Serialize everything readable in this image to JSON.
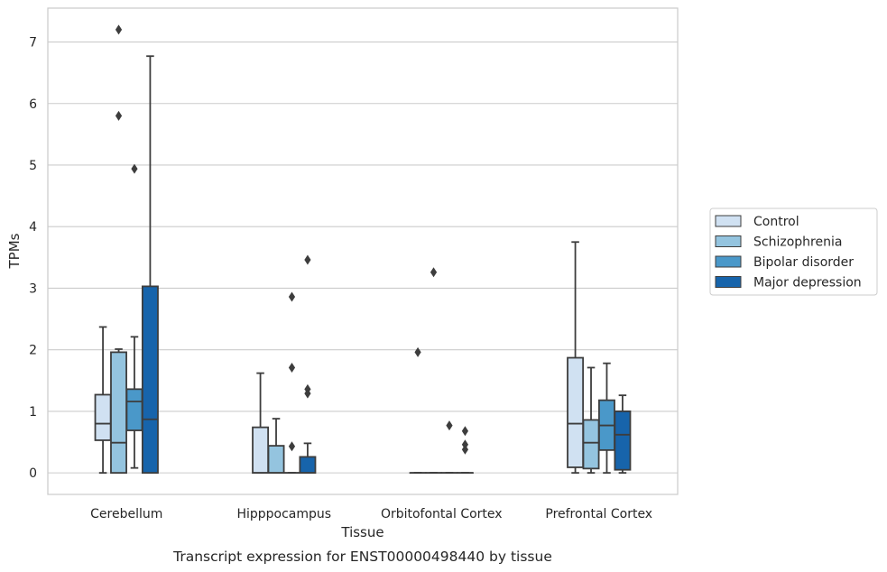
{
  "caption": "Transcript expression for ENST00000498440 by tissue",
  "chart_data": {
    "type": "box",
    "xlabel": "Tissue",
    "ylabel": "TPMs",
    "ylim": [
      -0.35,
      7.55
    ],
    "yticks": [
      0,
      1,
      2,
      3,
      4,
      5,
      6,
      7
    ],
    "grid": "horizontal",
    "legend_position": "right",
    "categories": [
      "Cerebellum",
      "Hipppocampus",
      "Orbitofontal Cortex",
      "Prefrontal Cortex"
    ],
    "series": [
      {
        "name": "Control",
        "color": "#d0e1f2",
        "boxes": [
          {
            "whislo": 0.0,
            "q1": 0.53,
            "med": 0.8,
            "q3": 1.27,
            "whishi": 2.37,
            "fliers": []
          },
          {
            "whislo": 0.0,
            "q1": 0.0,
            "med": 0.0,
            "q3": 0.74,
            "whishi": 1.62,
            "fliers": []
          },
          {
            "whislo": 0.0,
            "q1": 0.0,
            "med": 0.0,
            "q3": 0.0,
            "whishi": 0.0,
            "fliers": [
              1.96
            ]
          },
          {
            "whislo": 0.0,
            "q1": 0.09,
            "med": 0.8,
            "q3": 1.87,
            "whishi": 3.75,
            "fliers": []
          }
        ]
      },
      {
        "name": "Schizophrenia",
        "color": "#94c4df",
        "boxes": [
          {
            "whislo": 0.0,
            "q1": 0.0,
            "med": 0.49,
            "q3": 1.96,
            "whishi": 2.01,
            "fliers": [
              5.8,
              7.2
            ]
          },
          {
            "whislo": 0.0,
            "q1": 0.0,
            "med": 0.0,
            "q3": 0.44,
            "whishi": 0.88,
            "fliers": []
          },
          {
            "whislo": 0.0,
            "q1": 0.0,
            "med": 0.0,
            "q3": 0.0,
            "whishi": 0.0,
            "fliers": [
              3.26
            ]
          },
          {
            "whislo": 0.0,
            "q1": 0.07,
            "med": 0.49,
            "q3": 0.86,
            "whishi": 1.71,
            "fliers": []
          }
        ]
      },
      {
        "name": "Bipolar disorder",
        "color": "#4a98c9",
        "boxes": [
          {
            "whislo": 0.08,
            "q1": 0.69,
            "med": 1.16,
            "q3": 1.36,
            "whishi": 2.21,
            "fliers": [
              4.94
            ]
          },
          {
            "whislo": 0.0,
            "q1": 0.0,
            "med": 0.0,
            "q3": 0.0,
            "whishi": 0.0,
            "fliers": [
              0.43,
              1.71,
              2.86
            ]
          },
          {
            "whislo": 0.0,
            "q1": 0.0,
            "med": 0.0,
            "q3": 0.0,
            "whishi": 0.0,
            "fliers": [
              0.77
            ]
          },
          {
            "whislo": 0.0,
            "q1": 0.37,
            "med": 0.77,
            "q3": 1.18,
            "whishi": 1.78,
            "fliers": []
          }
        ]
      },
      {
        "name": "Major depression",
        "color": "#1764ab",
        "boxes": [
          {
            "whislo": 0.0,
            "q1": 0.0,
            "med": 0.87,
            "q3": 3.03,
            "whishi": 6.77,
            "fliers": []
          },
          {
            "whislo": 0.0,
            "q1": 0.0,
            "med": 0.0,
            "q3": 0.26,
            "whishi": 0.48,
            "fliers": [
              1.29,
              1.36,
              3.46
            ]
          },
          {
            "whislo": 0.0,
            "q1": 0.0,
            "med": 0.0,
            "q3": 0.0,
            "whishi": 0.0,
            "fliers": [
              0.38,
              0.46,
              0.68
            ]
          },
          {
            "whislo": 0.0,
            "q1": 0.05,
            "med": 0.62,
            "q3": 1.0,
            "whishi": 1.26,
            "fliers": []
          }
        ]
      }
    ]
  }
}
